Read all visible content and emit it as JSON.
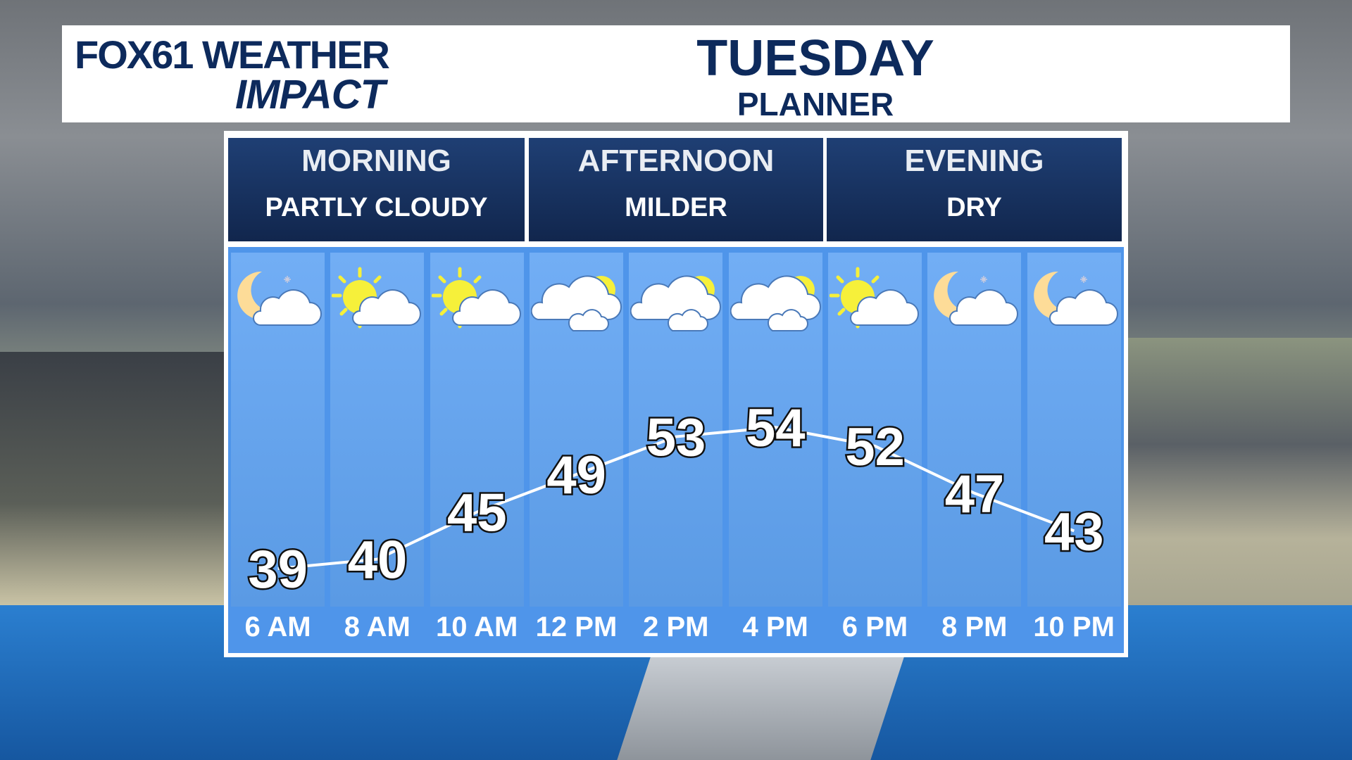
{
  "header": {
    "logo_line1": "FOX61 WEATHER",
    "logo_line2": "IMPACT",
    "title": "TUESDAY",
    "subtitle": "PLANNER"
  },
  "periods": [
    {
      "name": "MORNING",
      "desc": "PARTLY CLOUDY"
    },
    {
      "name": "AFTERNOON",
      "desc": "MILDER"
    },
    {
      "name": "EVENING",
      "desc": "DRY"
    }
  ],
  "hours": [
    {
      "time": "6 AM",
      "temp": 39,
      "icon": "moon-cloud-icon"
    },
    {
      "time": "8 AM",
      "temp": 40,
      "icon": "sun-cloud-icon"
    },
    {
      "time": "10 AM",
      "temp": 45,
      "icon": "sun-cloud-icon"
    },
    {
      "time": "12 PM",
      "temp": 49,
      "icon": "cloud-sun-icon"
    },
    {
      "time": "2 PM",
      "temp": 53,
      "icon": "cloud-sun-icon"
    },
    {
      "time": "4 PM",
      "temp": 54,
      "icon": "cloud-sun-icon"
    },
    {
      "time": "6 PM",
      "temp": 52,
      "icon": "sun-cloud-icon"
    },
    {
      "time": "8 PM",
      "temp": 47,
      "icon": "moon-cloud-icon"
    },
    {
      "time": "10 PM",
      "temp": 43,
      "icon": "moon-cloud-icon"
    }
  ],
  "colors": {
    "navy": "#0d2a5c",
    "panel_blue": "#5a9ae4",
    "sun": "#f6f03a",
    "moon": "#fddc98"
  }
}
